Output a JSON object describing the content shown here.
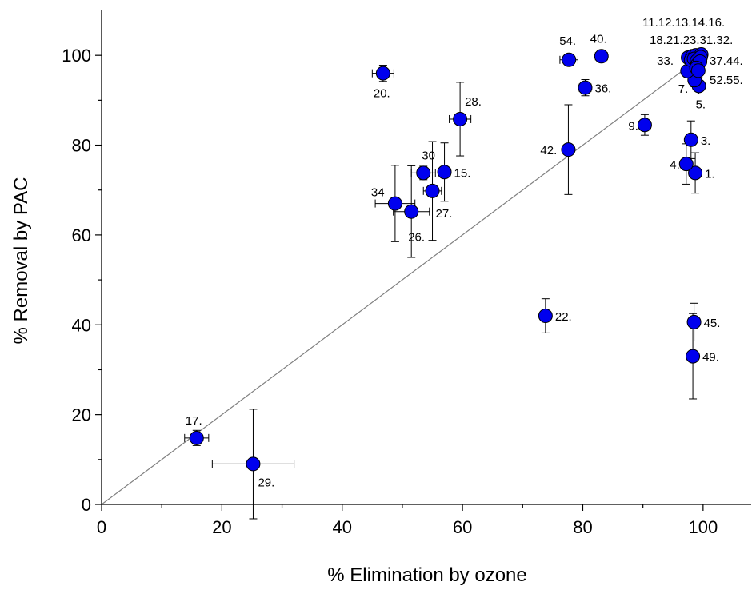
{
  "chart_data": {
    "type": "scatter",
    "xlabel": "% Elimination by ozone",
    "ylabel": "% Removal by PAC",
    "xlim": [
      0,
      108
    ],
    "ylim": [
      0,
      110
    ],
    "xticks": [
      0,
      20,
      40,
      60,
      80,
      100
    ],
    "yticks": [
      0,
      20,
      40,
      60,
      80,
      100
    ],
    "reference_line": {
      "x": [
        0,
        100
      ],
      "y": [
        0,
        100
      ]
    },
    "marker_color": "#0000ee",
    "points": [
      {
        "x": 98.7,
        "y": 73.8,
        "xerr": 0.5,
        "yerr": 4.5,
        "label": "1."
      },
      {
        "x": 98.0,
        "y": 81.2,
        "xerr": 0.5,
        "yerr": 4.2,
        "label": "3."
      },
      {
        "x": 97.2,
        "y": 75.8,
        "xerr": 0.5,
        "yerr": 4.5,
        "label": "4."
      },
      {
        "x": 99.3,
        "y": 93.2,
        "xerr": 0.5,
        "yerr": 1.8,
        "label": "5."
      },
      {
        "x": 98.6,
        "y": 94.5,
        "xerr": 0.5,
        "yerr": 1.5,
        "label": "7."
      },
      {
        "x": 90.3,
        "y": 84.5,
        "xerr": 1.0,
        "yerr": 2.3,
        "label": "9."
      },
      {
        "x": 57.0,
        "y": 74.0,
        "xerr": 1.0,
        "yerr": 6.5,
        "label": "15."
      },
      {
        "x": 15.8,
        "y": 14.8,
        "xerr": 2.0,
        "yerr": 1.7,
        "label": "17."
      },
      {
        "x": 46.8,
        "y": 96.0,
        "xerr": 1.8,
        "yerr": 1.8,
        "label": "20."
      },
      {
        "x": 73.8,
        "y": 42.0,
        "xerr": 0.8,
        "yerr": 3.8,
        "label": "22."
      },
      {
        "x": 25.2,
        "y": 9.0,
        "xerr": 6.8,
        "yerr": 12.2,
        "label": "29."
      },
      {
        "x": 51.5,
        "y": 65.2,
        "xerr": 3.0,
        "yerr": 10.2,
        "label": "26."
      },
      {
        "x": 55.0,
        "y": 69.8,
        "xerr": 1.5,
        "yerr": 11.0,
        "label": "27."
      },
      {
        "x": 59.6,
        "y": 85.8,
        "xerr": 1.8,
        "yerr": 8.2,
        "label": "28."
      },
      {
        "x": 53.5,
        "y": 73.8,
        "xerr": 2.0,
        "yerr": 1.5,
        "label": "30"
      },
      {
        "x": 48.8,
        "y": 67.0,
        "xerr": 3.3,
        "yerr": 8.5,
        "label": "34"
      },
      {
        "x": 80.4,
        "y": 92.8,
        "xerr": 1.0,
        "yerr": 1.8,
        "label": "36."
      },
      {
        "x": 83.1,
        "y": 99.8,
        "xerr": 1.0,
        "yerr": 0.5,
        "label": "40."
      },
      {
        "x": 77.6,
        "y": 79.0,
        "xerr": 0.5,
        "yerr": 10.0,
        "label": "42."
      },
      {
        "x": 98.5,
        "y": 40.6,
        "xerr": 0.5,
        "yerr": 4.2,
        "label": "45."
      },
      {
        "x": 98.3,
        "y": 33.0,
        "xerr": 0.5,
        "yerr": 9.5,
        "label": "49."
      },
      {
        "x": 77.7,
        "y": 99.0,
        "xerr": 1.5,
        "yerr": 0.6,
        "label": "54."
      },
      {
        "x": 97.4,
        "y": 96.5,
        "xerr": 0.8,
        "yerr": 1.3,
        "label": "33."
      },
      {
        "x": 97.5,
        "y": 99.5,
        "xerr": 0.5,
        "yerr": 0.5,
        "label": "11."
      },
      {
        "x": 98.2,
        "y": 99.8,
        "xerr": 0.5,
        "yerr": 0.5,
        "label": "12."
      },
      {
        "x": 98.8,
        "y": 100.0,
        "xerr": 0.5,
        "yerr": 0.5,
        "label": "13."
      },
      {
        "x": 99.3,
        "y": 99.5,
        "xerr": 0.5,
        "yerr": 0.5,
        "label": "14."
      },
      {
        "x": 99.7,
        "y": 100.2,
        "xerr": 0.5,
        "yerr": 0.5,
        "label": "16."
      },
      {
        "x": 98.0,
        "y": 99.0,
        "xerr": 0.5,
        "yerr": 0.5,
        "label": "18."
      },
      {
        "x": 98.5,
        "y": 99.2,
        "xerr": 0.5,
        "yerr": 0.5,
        "label": "21."
      },
      {
        "x": 99.0,
        "y": 98.8,
        "xerr": 0.5,
        "yerr": 0.5,
        "label": "23."
      },
      {
        "x": 99.4,
        "y": 98.5,
        "xerr": 0.5,
        "yerr": 0.5,
        "label": "31."
      },
      {
        "x": 99.6,
        "y": 99.6,
        "xerr": 0.5,
        "yerr": 0.5,
        "label": "32."
      },
      {
        "x": 99.1,
        "y": 98.0,
        "xerr": 0.5,
        "yerr": 0.5,
        "label": "37."
      },
      {
        "x": 99.5,
        "y": 98.6,
        "xerr": 0.5,
        "yerr": 0.5,
        "label": "44."
      },
      {
        "x": 98.9,
        "y": 97.2,
        "xerr": 0.5,
        "yerr": 0.5,
        "label": "52."
      },
      {
        "x": 99.2,
        "y": 96.6,
        "xerr": 0.5,
        "yerr": 0.5,
        "label": "55."
      }
    ]
  }
}
